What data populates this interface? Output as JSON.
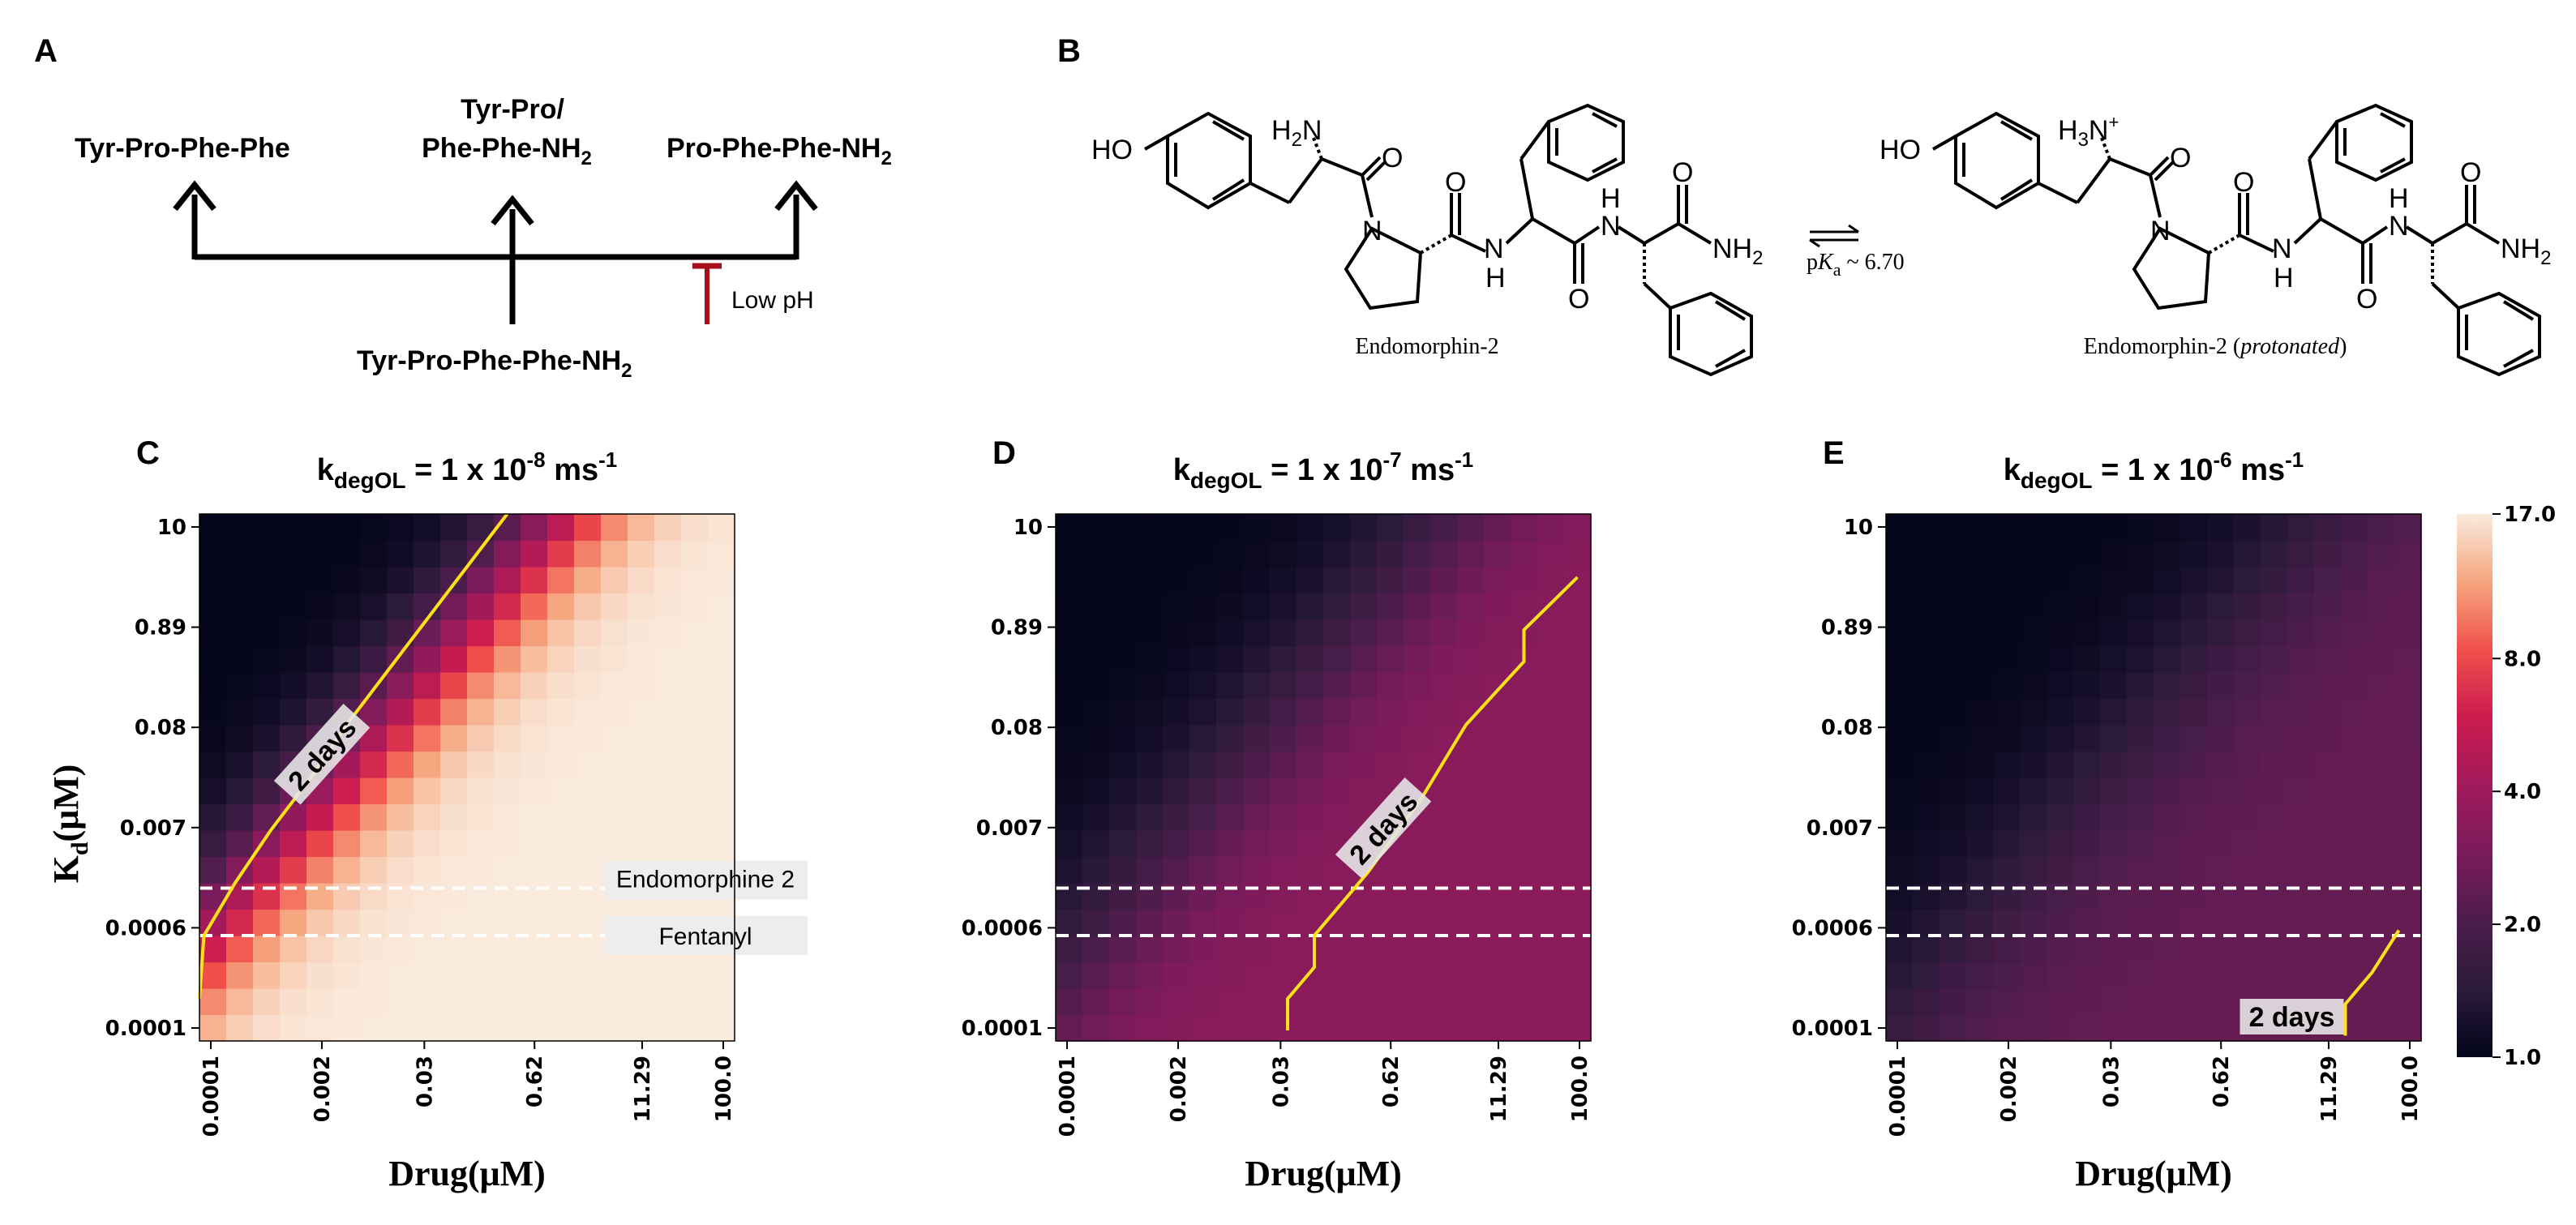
{
  "panel_a": {
    "letter": "A",
    "left_label": "Tyr-Pro-Phe-Phe",
    "middle_label_line1": "Tyr-Pro/",
    "middle_label_line2": "Phe-Phe-NH",
    "middle_label_sub": "2",
    "right_label": "Pro-Phe-Phe-NH",
    "right_label_sub": "2",
    "bottom_label": "Tyr-Pro-Phe-Phe-NH",
    "bottom_label_sub": "2",
    "inhibitor_label": "Low pH",
    "inhibitor_color": "#a50f15"
  },
  "panel_b": {
    "letter": "B",
    "left_caption": "Endomorphin-2",
    "right_caption_main": "Endomorphin-2 (",
    "right_caption_italic": "protonated",
    "right_caption_end": ")",
    "pka_text": "p",
    "pka_k": "K",
    "pka_sub": "a",
    "pka_value": " ~ 6.70",
    "atoms": {
      "ho": "HO",
      "h2n": "H",
      "h2n_sub": "2",
      "h2n_n": "N",
      "h3n": "H",
      "h3n_sub": "3",
      "h3n_n": "N",
      "h3n_plus": "+",
      "o": "O",
      "n": "N",
      "nh": "N",
      "h": "H",
      "nh2": "NH",
      "nh2_sub": "2"
    }
  },
  "colorbar": {
    "ticks": [
      "17.0",
      "8.0",
      "4.0",
      "2.0",
      "1.0"
    ],
    "min": 1.0,
    "max": 17.0
  },
  "shared": {
    "x_ticks": [
      "0.0001",
      "0.002",
      "0.03",
      "0.62",
      "11.29",
      "100.0"
    ],
    "y_ticks": [
      "10",
      "0.89",
      "0.08",
      "0.007",
      "0.0006",
      "0.0001"
    ],
    "xlabel": "Drug(μM)",
    "ylabel_k": "K",
    "ylabel_sub": "d",
    "ylabel_rest": "(μM)",
    "contour_label": "2 days",
    "line_endomorphine": "Endomorphine 2",
    "line_fentanyl": "Fentanyl",
    "contour_color": "#ffe11a",
    "dash_color": "#ffffff"
  },
  "chart_data": [
    {
      "type": "heatmap",
      "letter": "C",
      "title_k": "k",
      "title_sub": "degOL",
      "title_eq": " = 1 x 10",
      "title_exp": "-8",
      "title_unit": " ms",
      "title_unit_exp": "-1",
      "xlabel": "Drug(μM)",
      "ylabel": "Kd(μM)",
      "xlim_log10": [
        -4,
        2
      ],
      "ylim_log10": [
        -4,
        1
      ],
      "colormap": "rocket",
      "color_range": [
        1.0,
        17.0
      ],
      "grid_shape": [
        20,
        20
      ],
      "value_model": {
        "form": "1+16*sigmoid(a*(log10(drug)-log10(Kd)-b))",
        "a": 1.1,
        "b": -0.4
      },
      "contour_2_days": [
        [
          -4.0,
          -3.6
        ],
        [
          -3.95,
          -3.0
        ],
        [
          -3.6,
          -2.5
        ],
        [
          -3.2,
          -2.0
        ],
        [
          -2.75,
          -1.5
        ],
        [
          -2.35,
          -1.0
        ],
        [
          -1.9,
          -0.5
        ],
        [
          -1.45,
          0.0
        ],
        [
          -1.0,
          0.5
        ],
        [
          -0.55,
          1.0
        ]
      ],
      "show_reference_lines": true,
      "reference_lines_log10": {
        "Endomorphine 2": -2.55,
        "Fentanyl": -3.0
      },
      "contour_label_pos": [
        -2.6,
        -1.3
      ]
    },
    {
      "type": "heatmap",
      "letter": "D",
      "title_k": "k",
      "title_sub": "degOL",
      "title_eq": " = 1 x 10",
      "title_exp": "-7",
      "title_unit": " ms",
      "title_unit_exp": "-1",
      "xlabel": "Drug(μM)",
      "ylabel": "",
      "xlim_log10": [
        -4,
        2
      ],
      "ylim_log10": [
        -4,
        1
      ],
      "colormap": "rocket",
      "color_range": [
        1.0,
        17.0
      ],
      "grid_shape": [
        20,
        20
      ],
      "value_model": {
        "form": "1+2.4*sigmoid(a*(log10(drug)-log10(Kd)-b))",
        "a": 0.75,
        "b": -0.2
      },
      "contour_2_days": [
        [
          -1.4,
          -3.9
        ],
        [
          -1.4,
          -3.6
        ],
        [
          -1.1,
          -3.3
        ],
        [
          -1.1,
          -3.0
        ],
        [
          -0.5,
          -2.4
        ],
        [
          0.1,
          -1.7
        ],
        [
          0.6,
          -1.0
        ],
        [
          1.25,
          -0.4
        ],
        [
          1.25,
          -0.1
        ],
        [
          1.85,
          0.4
        ]
      ],
      "show_reference_lines": true,
      "reference_lines_log10": {
        "Endomorphine 2": -2.55,
        "Fentanyl": -3.0
      },
      "contour_label_pos": [
        -0.3,
        -2.0
      ]
    },
    {
      "type": "heatmap",
      "letter": "E",
      "title_k": "k",
      "title_sub": "degOL",
      "title_eq": " = 1 x 10",
      "title_exp": "-6",
      "title_unit": " ms",
      "title_unit_exp": "-1",
      "xlabel": "Drug(μM)",
      "ylabel": "",
      "xlim_log10": [
        -4,
        2
      ],
      "ylim_log10": [
        -4,
        1
      ],
      "colormap": "rocket",
      "color_range": [
        1.0,
        17.0
      ],
      "grid_shape": [
        20,
        20
      ],
      "value_model": {
        "form": "1+1.45*sigmoid(a*(log10(drug)-log10(Kd)-b))",
        "a": 0.7,
        "b": 0.2
      },
      "contour_2_days": [
        [
          1.15,
          -3.95
        ],
        [
          1.15,
          -3.65
        ],
        [
          1.45,
          -3.35
        ],
        [
          1.75,
          -2.95
        ]
      ],
      "show_reference_lines": true,
      "reference_lines_log10": {
        "Endomorphine 2": -2.55,
        "Fentanyl": -3.0
      },
      "contour_label_pos": [
        0.55,
        -3.8
      ]
    }
  ]
}
